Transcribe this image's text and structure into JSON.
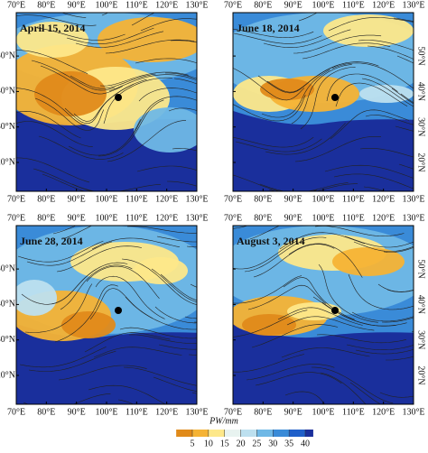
{
  "panels": [
    {
      "title": "April 15, 2014"
    },
    {
      "title": "June 18, 2014"
    },
    {
      "title": "June 28, 2014"
    },
    {
      "title": "August 3, 2014"
    }
  ],
  "lon_ticks": [
    "70°E",
    "80°E",
    "90°E",
    "100°E",
    "110°E",
    "120°E",
    "130°E"
  ],
  "lat_ticks": [
    "20°N",
    "30°N",
    "40°N",
    "50°N"
  ],
  "colorbar": {
    "label": "PW/mm",
    "ticks": [
      5,
      10,
      15,
      20,
      25,
      30,
      35,
      40
    ]
  }
}
